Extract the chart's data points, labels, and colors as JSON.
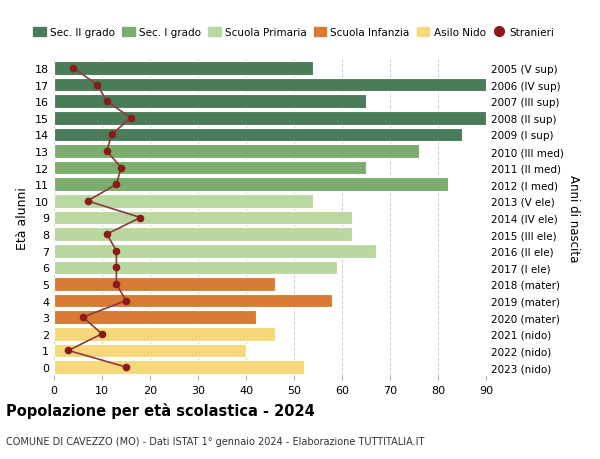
{
  "ages": [
    18,
    17,
    16,
    15,
    14,
    13,
    12,
    11,
    10,
    9,
    8,
    7,
    6,
    5,
    4,
    3,
    2,
    1,
    0
  ],
  "labels_right": [
    "2005 (V sup)",
    "2006 (IV sup)",
    "2007 (III sup)",
    "2008 (II sup)",
    "2009 (I sup)",
    "2010 (III med)",
    "2011 (II med)",
    "2012 (I med)",
    "2013 (V ele)",
    "2014 (IV ele)",
    "2015 (III ele)",
    "2016 (II ele)",
    "2017 (I ele)",
    "2018 (mater)",
    "2019 (mater)",
    "2020 (mater)",
    "2021 (nido)",
    "2022 (nido)",
    "2023 (nido)"
  ],
  "bar_values": [
    54,
    90,
    65,
    90,
    85,
    76,
    65,
    82,
    54,
    62,
    62,
    67,
    59,
    46,
    58,
    42,
    46,
    40,
    52
  ],
  "stranieri": [
    4,
    9,
    11,
    16,
    12,
    11,
    14,
    13,
    7,
    18,
    11,
    13,
    13,
    13,
    15,
    6,
    10,
    3,
    15
  ],
  "bar_colors": [
    "#4a7c59",
    "#4a7c59",
    "#4a7c59",
    "#4a7c59",
    "#4a7c59",
    "#7aad6e",
    "#7aad6e",
    "#7aad6e",
    "#b8d8a0",
    "#b8d8a0",
    "#b8d8a0",
    "#b8d8a0",
    "#b8d8a0",
    "#d97b35",
    "#d97b35",
    "#d97b35",
    "#f5d87a",
    "#f5d87a",
    "#f5d87a"
  ],
  "legend_colors": [
    "#4a7c59",
    "#7aad6e",
    "#b8d8a0",
    "#d97b35",
    "#f5d87a",
    "#8b1a1a"
  ],
  "legend_labels": [
    "Sec. II grado",
    "Sec. I grado",
    "Scuola Primaria",
    "Scuola Infanzia",
    "Asilo Nido",
    "Stranieri"
  ],
  "title": "Popolazione per età scolastica - 2024",
  "subtitle": "COMUNE DI CAVEZZO (MO) - Dati ISTAT 1° gennaio 2024 - Elaborazione TUTTITALIA.IT",
  "ylabel_left": "Età alunni",
  "ylabel_right": "Anni di nascita",
  "xlim": [
    0,
    90
  ],
  "xticks": [
    0,
    10,
    20,
    30,
    40,
    50,
    60,
    70,
    80,
    90
  ],
  "background_color": "#ffffff",
  "grid_color": "#cccccc",
  "stranieri_color": "#8b1a1a",
  "stranieri_line_color": "#8b3a3a",
  "bar_height": 0.82
}
